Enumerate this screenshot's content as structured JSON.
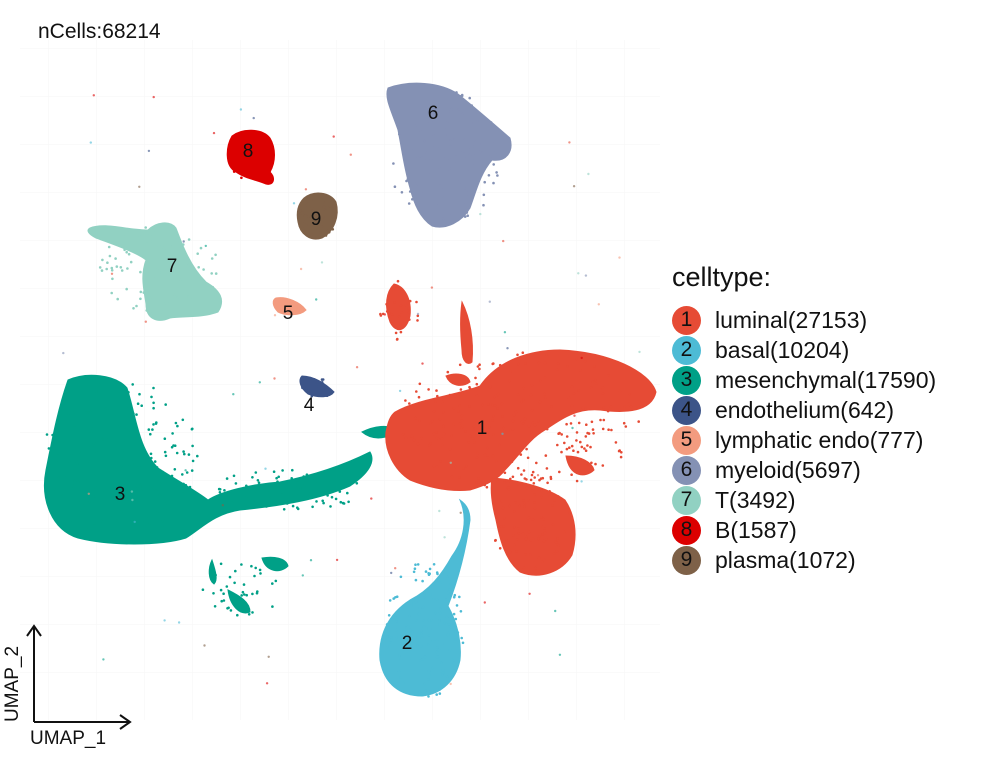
{
  "chart_data": {
    "type": "scatter",
    "title": "nCells:68214",
    "xlabel": "UMAP_1",
    "ylabel": "UMAP_2",
    "legend_title": "celltype:",
    "legend_position": "right",
    "grid": false,
    "series": [
      {
        "id": "1",
        "name": "luminal(27153)",
        "color": "#E64B35"
      },
      {
        "id": "2",
        "name": "basal(10204)",
        "color": "#4DBBD5"
      },
      {
        "id": "3",
        "name": "mesenchymal(17590)",
        "color": "#00A087"
      },
      {
        "id": "4",
        "name": "endothelium(642)",
        "color": "#3C5488"
      },
      {
        "id": "5",
        "name": "lymphatic endo(777)",
        "color": "#F39B7F"
      },
      {
        "id": "6",
        "name": "myeloid(5697)",
        "color": "#8491B4"
      },
      {
        "id": "7",
        "name": "T(3492)",
        "color": "#91D1C2"
      },
      {
        "id": "8",
        "name": "B(1587)",
        "color": "#DC0000"
      },
      {
        "id": "9",
        "name": "plasma(1072)",
        "color": "#7E6148"
      }
    ]
  }
}
